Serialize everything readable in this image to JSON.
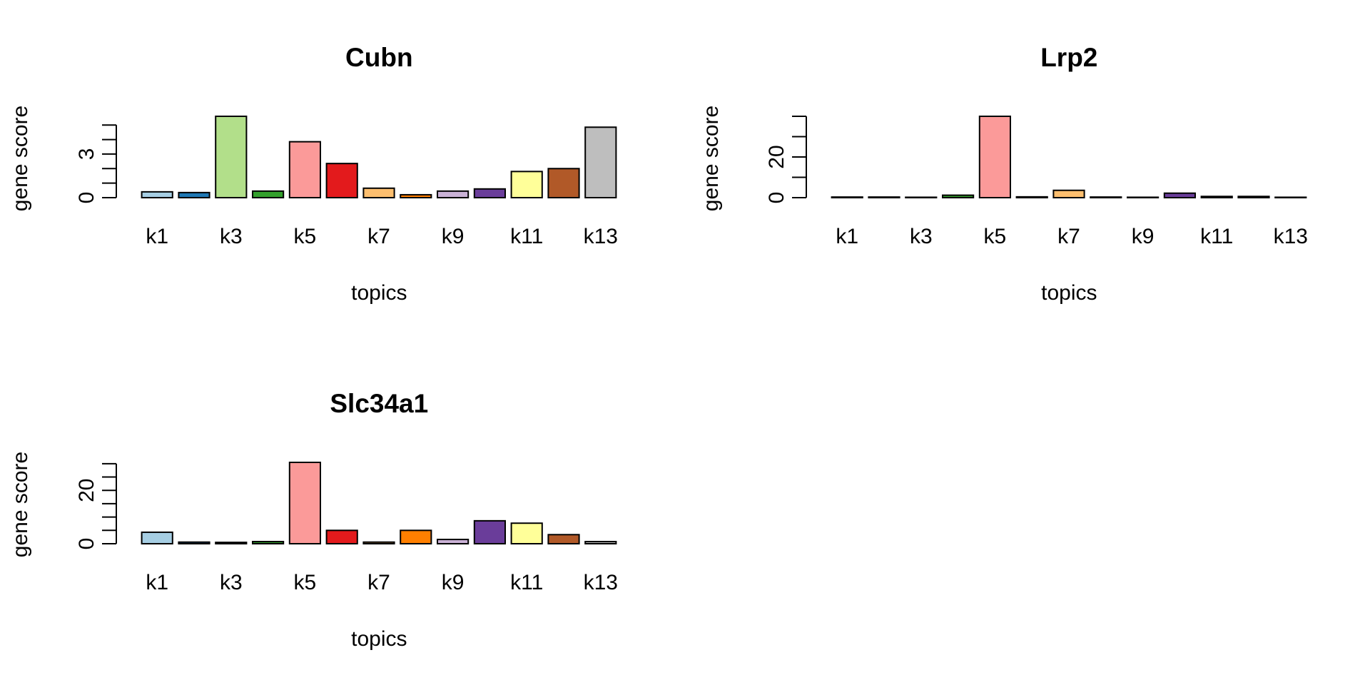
{
  "chart_data": [
    {
      "type": "bar",
      "title": "Cubn",
      "xlabel": "topics",
      "ylabel": "gene score",
      "categories": [
        "k1",
        "k2",
        "k3",
        "k4",
        "k5",
        "k6",
        "k7",
        "k8",
        "k9",
        "k10",
        "k11",
        "k12",
        "k13"
      ],
      "x_tick_labels": [
        "k1",
        "k3",
        "k5",
        "k7",
        "k9",
        "k11",
        "k13"
      ],
      "values": [
        0.4,
        0.35,
        5.6,
        0.45,
        3.85,
        2.35,
        0.65,
        0.2,
        0.45,
        0.6,
        1.8,
        2.0,
        4.85
      ],
      "colors": [
        "#A6CEE3",
        "#1F78B4",
        "#B2DF8A",
        "#33A02C",
        "#FB9A99",
        "#E31A1C",
        "#FDBF6F",
        "#FF7F00",
        "#CAB2D6",
        "#6A3D9A",
        "#FFFF99",
        "#B15928",
        "#BEBEBE"
      ],
      "y_ticks": [
        0,
        1,
        2,
        3,
        4,
        5
      ],
      "y_tick_labels": [
        "0",
        "",
        "",
        "3",
        "",
        ""
      ],
      "ylim": [
        0,
        5.6
      ]
    },
    {
      "type": "bar",
      "title": "Lrp2",
      "xlabel": "topics",
      "ylabel": "gene score",
      "categories": [
        "k1",
        "k2",
        "k3",
        "k4",
        "k5",
        "k6",
        "k7",
        "k8",
        "k9",
        "k10",
        "k11",
        "k12",
        "k13"
      ],
      "x_tick_labels": [
        "k1",
        "k3",
        "k5",
        "k7",
        "k9",
        "k11",
        "k13"
      ],
      "values": [
        0.3,
        0.3,
        0.2,
        1.2,
        40,
        0.4,
        3.6,
        0.3,
        0.2,
        2.2,
        0.6,
        0.6,
        0.2
      ],
      "colors": [
        "#A6CEE3",
        "#1F78B4",
        "#B2DF8A",
        "#33A02C",
        "#FB9A99",
        "#E31A1C",
        "#FDBF6F",
        "#FF7F00",
        "#CAB2D6",
        "#6A3D9A",
        "#FFFF99",
        "#B15928",
        "#BEBEBE"
      ],
      "y_ticks": [
        0,
        10,
        20,
        30,
        40
      ],
      "y_tick_labels": [
        "0",
        "",
        "20",
        "",
        ""
      ],
      "ylim": [
        0,
        40
      ]
    },
    {
      "type": "bar",
      "title": "Slc34a1",
      "xlabel": "topics",
      "ylabel": "gene score",
      "categories": [
        "k1",
        "k2",
        "k3",
        "k4",
        "k5",
        "k6",
        "k7",
        "k8",
        "k9",
        "k10",
        "k11",
        "k12",
        "k13"
      ],
      "x_tick_labels": [
        "k1",
        "k3",
        "k5",
        "k7",
        "k9",
        "k11",
        "k13"
      ],
      "values": [
        4.3,
        0.6,
        0.5,
        0.8,
        30.5,
        5.0,
        0.6,
        5.0,
        1.6,
        8.6,
        7.7,
        3.4,
        0.8
      ],
      "colors": [
        "#A6CEE3",
        "#1F78B4",
        "#B2DF8A",
        "#33A02C",
        "#FB9A99",
        "#E31A1C",
        "#FDBF6F",
        "#FF7F00",
        "#CAB2D6",
        "#6A3D9A",
        "#FFFF99",
        "#B15928",
        "#BEBEBE"
      ],
      "y_ticks": [
        0,
        5,
        10,
        15,
        20,
        25,
        30
      ],
      "y_tick_labels": [
        "0",
        "",
        "",
        "",
        "20",
        "",
        ""
      ],
      "ylim": [
        0,
        30.5
      ]
    }
  ]
}
